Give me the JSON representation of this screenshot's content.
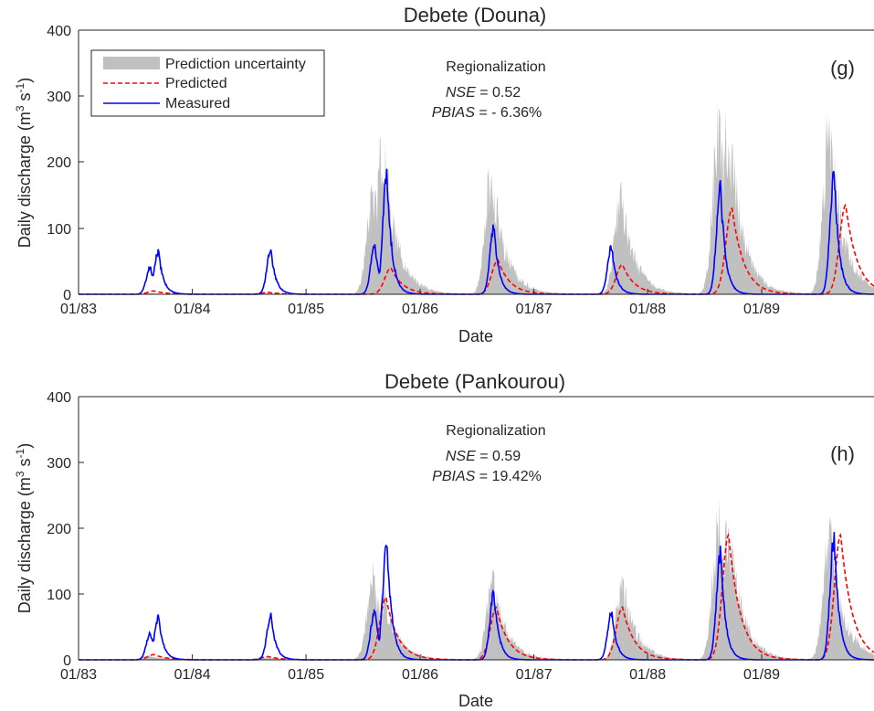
{
  "chart_data": [
    {
      "type": "area",
      "panel_id": "(g)",
      "title": "Debete (Douna)",
      "xlabel": "Date",
      "ylabel": "Daily discharge (m³ s⁻¹)",
      "ylim": [
        0,
        400
      ],
      "xlim": [
        "1983-01-01",
        "1989-12-31"
      ],
      "yticks": [
        0,
        100,
        200,
        300,
        400
      ],
      "xticks": [
        "01/83",
        "01/84",
        "01/85",
        "01/86",
        "01/87",
        "01/88",
        "01/89"
      ],
      "legend": {
        "placement": "top-left",
        "entries": [
          "Prediction uncertainty",
          "Predicted",
          "Measured"
        ]
      },
      "annotation": {
        "heading": "Regionalization",
        "nse_label": "NSE",
        "nse_value": " = 0.52",
        "pbias_label": "PBIAS",
        "pbias_value": " = - 6.36%"
      },
      "series": [
        {
          "name": "Prediction uncertainty",
          "kind": "band",
          "color": "#c0c0c0",
          "peaks": [
            {
              "date": "1983-08-15",
              "value": 2
            },
            {
              "date": "1984-08-15",
              "value": 2
            },
            {
              "date": "1985-08-05",
              "value": 190
            },
            {
              "date": "1985-09-05",
              "value": 285
            },
            {
              "date": "1986-08-20",
              "value": 230
            },
            {
              "date": "1987-10-10",
              "value": 185
            },
            {
              "date": "1988-08-20",
              "value": 320
            },
            {
              "date": "1988-09-20",
              "value": 320
            },
            {
              "date": "1989-08-10",
              "value": 320
            }
          ]
        },
        {
          "name": "Predicted",
          "kind": "dashed",
          "color": "#ff0000",
          "peaks": [
            {
              "date": "1983-09-01",
              "value": 5
            },
            {
              "date": "1984-09-01",
              "value": 3
            },
            {
              "date": "1985-10-01",
              "value": 40
            },
            {
              "date": "1986-09-10",
              "value": 52
            },
            {
              "date": "1987-10-15",
              "value": 45
            },
            {
              "date": "1988-10-01",
              "value": 130
            },
            {
              "date": "1989-10-01",
              "value": 135
            }
          ]
        },
        {
          "name": "Measured",
          "kind": "solid",
          "color": "#0000ff",
          "peaks": [
            {
              "date": "1983-08-20",
              "value": 45
            },
            {
              "date": "1983-09-15",
              "value": 70
            },
            {
              "date": "1984-09-10",
              "value": 72
            },
            {
              "date": "1985-08-10",
              "value": 82
            },
            {
              "date": "1985-09-18",
              "value": 198
            },
            {
              "date": "1986-08-28",
              "value": 110
            },
            {
              "date": "1987-09-10",
              "value": 78
            },
            {
              "date": "1988-08-25",
              "value": 175
            },
            {
              "date": "1989-08-25",
              "value": 202
            }
          ]
        }
      ]
    },
    {
      "type": "area",
      "panel_id": "(h)",
      "title": "Debete (Pankourou)",
      "xlabel": "Date",
      "ylabel": "Daily discharge (m³ s⁻¹)",
      "ylim": [
        0,
        400
      ],
      "xlim": [
        "1983-01-01",
        "1989-12-31"
      ],
      "yticks": [
        0,
        100,
        200,
        300,
        400
      ],
      "xticks": [
        "01/83",
        "01/84",
        "01/85",
        "01/86",
        "01/87",
        "01/88",
        "01/89"
      ],
      "annotation": {
        "heading": "Regionalization",
        "nse_label": "NSE",
        "nse_value": " = 0.59",
        "pbias_label": "PBIAS",
        "pbias_value": " = 19.42%"
      },
      "series": [
        {
          "name": "Prediction uncertainty",
          "kind": "band",
          "color": "#c0c0c0",
          "peaks": [
            {
              "date": "1983-08-15",
              "value": 8
            },
            {
              "date": "1984-08-15",
              "value": 6
            },
            {
              "date": "1985-08-05",
              "value": 160
            },
            {
              "date": "1985-09-10",
              "value": 120
            },
            {
              "date": "1986-08-25",
              "value": 150
            },
            {
              "date": "1987-10-15",
              "value": 140
            },
            {
              "date": "1988-08-20",
              "value": 255
            },
            {
              "date": "1988-09-20",
              "value": 250
            },
            {
              "date": "1989-08-10",
              "value": 250
            }
          ]
        },
        {
          "name": "Predicted",
          "kind": "dashed",
          "color": "#ff0000",
          "peaks": [
            {
              "date": "1983-09-01",
              "value": 8
            },
            {
              "date": "1984-09-01",
              "value": 5
            },
            {
              "date": "1985-09-15",
              "value": 95
            },
            {
              "date": "1986-09-05",
              "value": 80
            },
            {
              "date": "1987-10-15",
              "value": 80
            },
            {
              "date": "1988-09-20",
              "value": 190
            },
            {
              "date": "1989-09-15",
              "value": 190
            }
          ]
        },
        {
          "name": "Measured",
          "kind": "solid",
          "color": "#0000ff",
          "peaks": [
            {
              "date": "1983-08-20",
              "value": 45
            },
            {
              "date": "1983-09-15",
              "value": 70
            },
            {
              "date": "1984-09-10",
              "value": 72
            },
            {
              "date": "1985-08-10",
              "value": 82
            },
            {
              "date": "1985-09-18",
              "value": 198
            },
            {
              "date": "1986-08-28",
              "value": 110
            },
            {
              "date": "1987-09-10",
              "value": 78
            },
            {
              "date": "1988-08-25",
              "value": 175
            },
            {
              "date": "1989-08-25",
              "value": 202
            }
          ]
        }
      ]
    }
  ],
  "panels": [
    {
      "title": "Debete (Douna)",
      "label": "(g)",
      "ylabel_prefix": "Daily discharge (m",
      "ylabel_exp1": "3",
      "ylabel_mid": " s",
      "ylabel_exp2": "-1",
      "ylabel_suffix": ")",
      "xlabel": "Date",
      "ann_heading": "Regionalization",
      "nse_label": "NSE",
      "nse_value": " = 0.52",
      "pbias_label": "PBIAS",
      "pbias_value": " = - 6.36%",
      "legend": {
        "uncertainty": "Prediction uncertainty",
        "predicted": "Predicted",
        "measured": "Measured"
      },
      "yticks": [
        "0",
        "100",
        "200",
        "300",
        "400"
      ],
      "xticks": [
        "01/83",
        "01/84",
        "01/85",
        "01/86",
        "01/87",
        "01/88",
        "01/89"
      ]
    },
    {
      "title": "Debete (Pankourou)",
      "label": "(h)",
      "ylabel_prefix": "Daily discharge (m",
      "ylabel_exp1": "3",
      "ylabel_mid": " s",
      "ylabel_exp2": "-1",
      "ylabel_suffix": ")",
      "xlabel": "Date",
      "ann_heading": "Regionalization",
      "nse_label": "NSE",
      "nse_value": " = 0.59",
      "pbias_label": "PBIAS",
      "pbias_value": " = 19.42%",
      "yticks": [
        "0",
        "100",
        "200",
        "300",
        "400"
      ],
      "xticks": [
        "01/83",
        "01/84",
        "01/85",
        "01/86",
        "01/87",
        "01/88",
        "01/89"
      ]
    }
  ]
}
